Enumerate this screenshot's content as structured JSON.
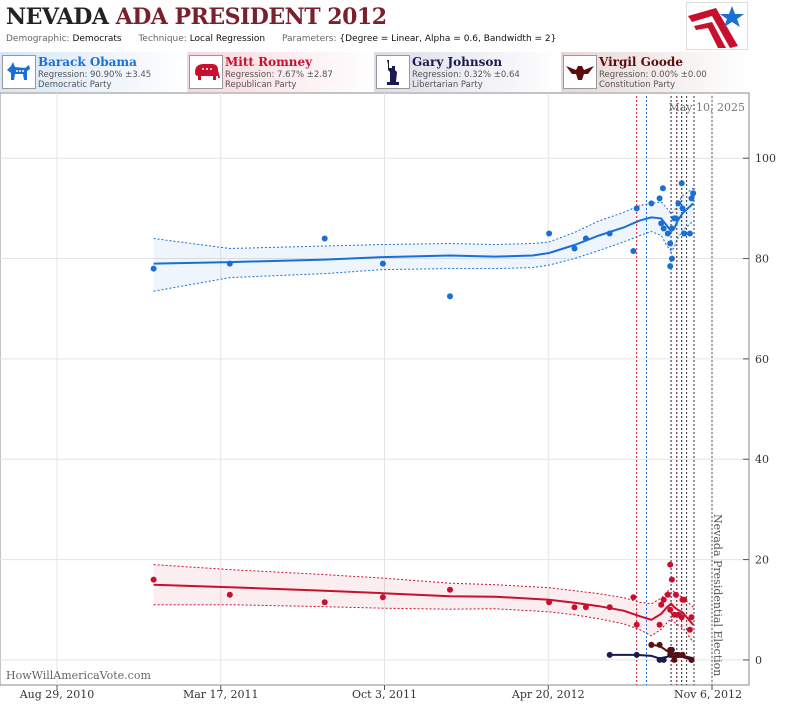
{
  "header": {
    "title_state": "NEVADA",
    "title_rest": "ADA PRESIDENT 2012",
    "demographic_label": "Demographic:",
    "demographic_value": "Democrats",
    "technique_label": "Technique:",
    "technique_value": "Local Regression",
    "parameters_label": "Parameters:",
    "parameters_value": "{Degree = Linear, Alpha = 0.6, Bandwidth = 2}"
  },
  "candidates": [
    {
      "name": "Barack Obama",
      "regression": "Regression: 90.90% ±3.45",
      "party": "Democratic Party",
      "color": "#1a6fd4",
      "icon": "donkey-icon"
    },
    {
      "name": "Mitt Romney",
      "regression": "Regression: 7.67% ±2.87",
      "party": "Republican Party",
      "color": "#c8102e",
      "icon": "elephant-icon"
    },
    {
      "name": "Gary Johnson",
      "regression": "Regression: 0.32% ±0.64",
      "party": "Libertarian Party",
      "color": "#1a1a4e",
      "icon": "statue-of-liberty-icon"
    },
    {
      "name": "Virgil Goode",
      "regression": "Regression: 0.00% ±0.00",
      "party": "Constitution Party",
      "color": "#5c0e0e",
      "icon": "eagle-icon"
    }
  ],
  "watermark": "HowWillAmericaVote.com",
  "chart_data": {
    "type": "scatter",
    "date_label": "May 10, 2025",
    "event_label": "Nevada Presidential Election",
    "x_ticks": [
      "Aug 29, 2010",
      "Mar 17, 2011",
      "Oct 3, 2011",
      "Apr 20, 2012",
      "Nov 6, 2012"
    ],
    "x_range": [
      "2010-08-29",
      "2012-11-06"
    ],
    "y_ticks": [
      0,
      20,
      40,
      60,
      80,
      100
    ],
    "ylim": [
      -5,
      113
    ],
    "grid": true,
    "series": [
      {
        "name": "Barack Obama",
        "color": "#1a6fd4",
        "points": [
          [
            "2010-12-25",
            78
          ],
          [
            "2011-03-28",
            79
          ],
          [
            "2011-07-22",
            84
          ],
          [
            "2011-10-01",
            79
          ],
          [
            "2011-12-22",
            72.5
          ],
          [
            "2012-04-21",
            85
          ],
          [
            "2012-05-22",
            82
          ],
          [
            "2012-06-05",
            84
          ],
          [
            "2012-07-04",
            85
          ],
          [
            "2012-08-02",
            81.5
          ],
          [
            "2012-08-06",
            90
          ],
          [
            "2012-08-24",
            91
          ],
          [
            "2012-09-03",
            92
          ],
          [
            "2012-09-07",
            94
          ],
          [
            "2012-09-05",
            87
          ],
          [
            "2012-09-08",
            86
          ],
          [
            "2012-09-13",
            85
          ],
          [
            "2012-09-16",
            83
          ],
          [
            "2012-09-18",
            86
          ],
          [
            "2012-09-16",
            78.5
          ],
          [
            "2012-09-18",
            80
          ],
          [
            "2012-09-21",
            88
          ],
          [
            "2012-09-23",
            88
          ],
          [
            "2012-09-26",
            91
          ],
          [
            "2012-09-30",
            95
          ],
          [
            "2012-10-01",
            90
          ],
          [
            "2012-10-03",
            85
          ],
          [
            "2012-10-10",
            85
          ],
          [
            "2012-10-12",
            92
          ],
          [
            "2012-10-14",
            93
          ]
        ],
        "trend": [
          [
            "2010-12-25",
            79
          ],
          [
            "2011-03-28",
            79.3
          ],
          [
            "2011-07-22",
            79.8
          ],
          [
            "2011-10-01",
            80.3
          ],
          [
            "2011-12-22",
            80.6
          ],
          [
            "2012-02-15",
            80.4
          ],
          [
            "2012-04-01",
            80.6
          ],
          [
            "2012-04-21",
            81.1
          ],
          [
            "2012-05-22",
            82.7
          ],
          [
            "2012-06-21",
            84.6
          ],
          [
            "2012-07-21",
            86.2
          ],
          [
            "2012-08-10",
            87.6
          ],
          [
            "2012-08-24",
            88.2
          ],
          [
            "2012-09-05",
            88
          ],
          [
            "2012-09-12",
            86.5
          ],
          [
            "2012-09-17",
            85.5
          ],
          [
            "2012-09-21",
            86
          ],
          [
            "2012-09-25",
            87.5
          ],
          [
            "2012-10-01",
            89
          ],
          [
            "2012-10-14",
            91
          ]
        ],
        "band_upper": [
          [
            "2010-12-25",
            84
          ],
          [
            "2011-03-28",
            82
          ],
          [
            "2011-07-22",
            82.5
          ],
          [
            "2011-10-01",
            82.8
          ],
          [
            "2011-12-22",
            83
          ],
          [
            "2012-02-15",
            82.8
          ],
          [
            "2012-04-01",
            83
          ],
          [
            "2012-04-21",
            83.3
          ],
          [
            "2012-05-22",
            85.2
          ],
          [
            "2012-06-21",
            87.5
          ],
          [
            "2012-07-21",
            89.2
          ],
          [
            "2012-08-10",
            90.6
          ],
          [
            "2012-08-24",
            91
          ],
          [
            "2012-09-05",
            91.3
          ],
          [
            "2012-09-12",
            90
          ],
          [
            "2012-09-17",
            89
          ],
          [
            "2012-09-21",
            89.5
          ],
          [
            "2012-09-25",
            91
          ],
          [
            "2012-10-01",
            92.5
          ],
          [
            "2012-10-14",
            94
          ]
        ],
        "band_lower": [
          [
            "2010-12-25",
            73.5
          ],
          [
            "2011-03-28",
            76.2
          ],
          [
            "2011-07-22",
            77
          ],
          [
            "2011-10-01",
            77.8
          ],
          [
            "2011-12-22",
            78
          ],
          [
            "2012-02-15",
            78
          ],
          [
            "2012-04-01",
            78.2
          ],
          [
            "2012-04-21",
            78.7
          ],
          [
            "2012-05-22",
            80
          ],
          [
            "2012-06-21",
            81.6
          ],
          [
            "2012-07-21",
            83.3
          ],
          [
            "2012-08-10",
            84.6
          ],
          [
            "2012-08-24",
            85.4
          ],
          [
            "2012-09-05",
            84.6
          ],
          [
            "2012-09-12",
            82.5
          ],
          [
            "2012-09-17",
            81.5
          ],
          [
            "2012-09-21",
            82.2
          ],
          [
            "2012-09-25",
            84
          ],
          [
            "2012-10-01",
            85.5
          ],
          [
            "2012-10-14",
            87.5
          ]
        ]
      },
      {
        "name": "Mitt Romney",
        "color": "#c8102e",
        "points": [
          [
            "2010-12-25",
            16
          ],
          [
            "2011-03-28",
            13
          ],
          [
            "2011-07-22",
            11.5
          ],
          [
            "2011-10-01",
            12.5
          ],
          [
            "2011-12-22",
            14
          ],
          [
            "2012-04-21",
            11.5
          ],
          [
            "2012-05-22",
            10.5
          ],
          [
            "2012-06-05",
            10.5
          ],
          [
            "2012-07-04",
            10.5
          ],
          [
            "2012-08-02",
            12.5
          ],
          [
            "2012-08-06",
            7
          ],
          [
            "2012-08-24",
            3
          ],
          [
            "2012-09-03",
            7
          ],
          [
            "2012-09-05",
            11
          ],
          [
            "2012-09-08",
            12
          ],
          [
            "2012-09-13",
            13
          ],
          [
            "2012-09-16",
            19
          ],
          [
            "2012-09-18",
            16
          ],
          [
            "2012-09-16",
            10
          ],
          [
            "2012-09-21",
            9
          ],
          [
            "2012-09-23",
            13
          ],
          [
            "2012-09-26",
            9
          ],
          [
            "2012-09-30",
            8.5
          ],
          [
            "2012-10-01",
            12
          ],
          [
            "2012-10-03",
            12
          ],
          [
            "2012-10-10",
            6
          ],
          [
            "2012-10-12",
            8.5
          ]
        ],
        "trend": [
          [
            "2010-12-25",
            15
          ],
          [
            "2011-03-28",
            14.5
          ],
          [
            "2011-07-22",
            13.8
          ],
          [
            "2011-10-01",
            13.3
          ],
          [
            "2011-12-22",
            12.7
          ],
          [
            "2012-02-15",
            12.6
          ],
          [
            "2012-04-21",
            12
          ],
          [
            "2012-05-22",
            11.4
          ],
          [
            "2012-06-21",
            10.7
          ],
          [
            "2012-07-21",
            9.8
          ],
          [
            "2012-08-10",
            8.7
          ],
          [
            "2012-08-24",
            8
          ],
          [
            "2012-09-05",
            9.2
          ],
          [
            "2012-09-12",
            10.5
          ],
          [
            "2012-09-17",
            11.2
          ],
          [
            "2012-09-21",
            10.5
          ],
          [
            "2012-09-25",
            10
          ],
          [
            "2012-10-01",
            9.5
          ],
          [
            "2012-10-14",
            7
          ]
        ],
        "band_upper": [
          [
            "2010-12-25",
            19
          ],
          [
            "2011-03-28",
            18
          ],
          [
            "2011-07-22",
            17
          ],
          [
            "2011-10-01",
            16.3
          ],
          [
            "2011-12-22",
            15.3
          ],
          [
            "2012-02-15",
            15
          ],
          [
            "2012-04-21",
            14.4
          ],
          [
            "2012-05-22",
            13.8
          ],
          [
            "2012-06-21",
            13.2
          ],
          [
            "2012-07-21",
            12.4
          ],
          [
            "2012-08-10",
            11.5
          ],
          [
            "2012-08-24",
            11.2
          ],
          [
            "2012-09-05",
            12.3
          ],
          [
            "2012-09-12",
            13.6
          ],
          [
            "2012-09-17",
            14.2
          ],
          [
            "2012-09-21",
            13.5
          ],
          [
            "2012-09-25",
            13
          ],
          [
            "2012-10-01",
            12.5
          ],
          [
            "2012-10-14",
            10.5
          ]
        ],
        "band_lower": [
          [
            "2010-12-25",
            11
          ],
          [
            "2011-03-28",
            11
          ],
          [
            "2011-07-22",
            10.6
          ],
          [
            "2011-10-01",
            10.3
          ],
          [
            "2011-12-22",
            10.1
          ],
          [
            "2012-02-15",
            10.2
          ],
          [
            "2012-04-21",
            9.6
          ],
          [
            "2012-05-22",
            9
          ],
          [
            "2012-06-21",
            8.2
          ],
          [
            "2012-07-21",
            7.2
          ],
          [
            "2012-08-10",
            6
          ],
          [
            "2012-08-24",
            4.8
          ],
          [
            "2012-09-05",
            6.1
          ],
          [
            "2012-09-12",
            7.4
          ],
          [
            "2012-09-17",
            8.2
          ],
          [
            "2012-09-21",
            7.5
          ],
          [
            "2012-09-25",
            7
          ],
          [
            "2012-10-01",
            6.5
          ],
          [
            "2012-10-14",
            3.5
          ]
        ]
      },
      {
        "name": "Gary Johnson",
        "color": "#1a1a4e",
        "points": [
          [
            "2012-07-04",
            1
          ],
          [
            "2012-08-06",
            1
          ],
          [
            "2012-09-03",
            0
          ],
          [
            "2012-09-08",
            0
          ],
          [
            "2012-09-16",
            1
          ],
          [
            "2012-09-18",
            2
          ],
          [
            "2012-09-23",
            1
          ],
          [
            "2012-10-01",
            1
          ],
          [
            "2012-10-12",
            0
          ]
        ],
        "trend": [
          [
            "2012-07-04",
            1
          ],
          [
            "2012-08-06",
            1
          ],
          [
            "2012-08-24",
            0.8
          ],
          [
            "2012-09-03",
            0.3
          ],
          [
            "2012-09-12",
            0.6
          ],
          [
            "2012-09-18",
            1
          ],
          [
            "2012-09-26",
            1
          ],
          [
            "2012-10-12",
            0.4
          ]
        ]
      },
      {
        "name": "Virgil Goode",
        "color": "#5c0e0e",
        "points": [
          [
            "2012-08-24",
            3
          ],
          [
            "2012-09-03",
            3
          ],
          [
            "2012-09-16",
            2
          ],
          [
            "2012-09-18",
            1
          ],
          [
            "2012-09-21",
            0
          ],
          [
            "2012-09-26",
            1
          ],
          [
            "2012-10-01",
            1
          ],
          [
            "2012-10-12",
            0
          ]
        ],
        "trend": [
          [
            "2012-08-24",
            3
          ],
          [
            "2012-09-03",
            2.8
          ],
          [
            "2012-09-12",
            1.8
          ],
          [
            "2012-09-21",
            0.6
          ],
          [
            "2012-10-01",
            0.6
          ],
          [
            "2012-10-12",
            0
          ]
        ]
      }
    ],
    "event_lines": [
      {
        "date": "2012-08-06",
        "color": "#c8102e"
      },
      {
        "date": "2012-08-18",
        "color": "#1a6fd4"
      },
      {
        "date": "2012-09-17",
        "color": "#1a1a4e"
      },
      {
        "date": "2012-09-24",
        "color": "#5c0e0e"
      },
      {
        "date": "2012-09-30",
        "color": "#1a1a4e"
      },
      {
        "date": "2012-10-06",
        "color": "#333333"
      },
      {
        "date": "2012-10-15",
        "color": "#333333"
      },
      {
        "date": "2012-11-06",
        "color": "#555555"
      }
    ]
  }
}
